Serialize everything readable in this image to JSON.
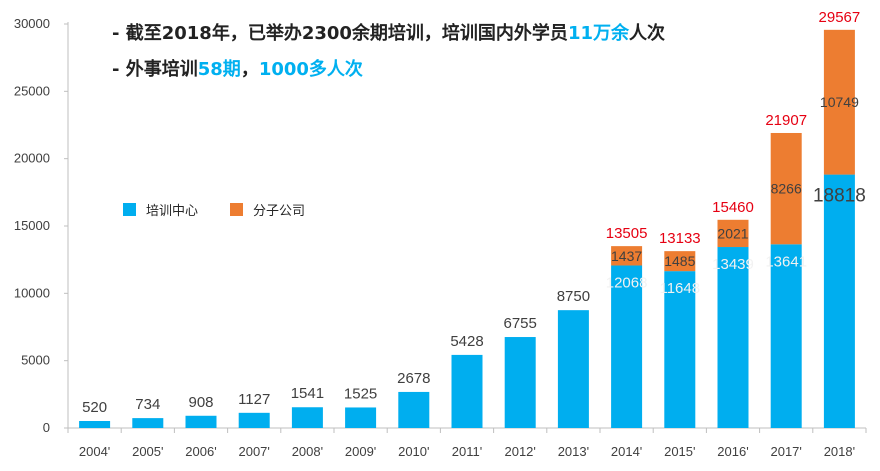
{
  "annotations": {
    "line1": {
      "prefix": "- 截至2018年，已举办2300余期培训，培训国内外学员",
      "highlight": "11万余",
      "suffix": "人次"
    },
    "line2": {
      "prefix": "- 外事培训",
      "highlight": "58期",
      "sep": "，",
      "highlight2": "1000多人次"
    }
  },
  "colors": {
    "training_center": "#00aeef",
    "branch": "#ed7d31",
    "total_label": "#e60012",
    "axis": "#bfbfbf",
    "text": "#404040",
    "highlight": "#00b0f0"
  },
  "chart_data": {
    "type": "bar",
    "stacked": true,
    "categories": [
      "2004'",
      "2005'",
      "2006'",
      "2007'",
      "2008'",
      "2009'",
      "2010'",
      "2011'",
      "2012'",
      "2013'",
      "2014'",
      "2015'",
      "2016'",
      "2017'",
      "2018'"
    ],
    "series": [
      {
        "name": "培训中心",
        "values": [
          520,
          734,
          908,
          1127,
          1541,
          1525,
          2678,
          5428,
          6755,
          8750,
          12068,
          11648,
          13439,
          13641,
          18818
        ]
      },
      {
        "name": "分子公司",
        "values": [
          null,
          null,
          null,
          null,
          null,
          null,
          null,
          null,
          null,
          null,
          1437,
          1485,
          2021,
          8266,
          10749
        ]
      }
    ],
    "totals": [
      null,
      null,
      null,
      null,
      null,
      null,
      null,
      null,
      null,
      null,
      13505,
      13133,
      15460,
      21907,
      29567
    ],
    "yticks": [
      "0",
      "5000",
      "10000",
      "15000",
      "20000",
      "25000",
      "30000"
    ],
    "ylim": [
      0,
      30000
    ],
    "legend_position": "left-middle",
    "grid": false
  }
}
